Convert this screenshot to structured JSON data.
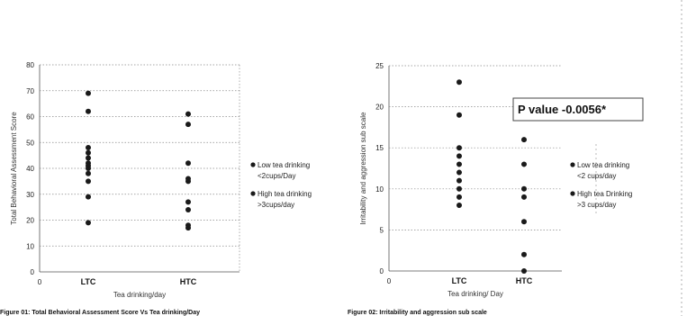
{
  "chart_data": [
    {
      "type": "scatter",
      "categories": [
        "LTC",
        "HTC"
      ],
      "ylabel": "Total Behavioral Assessment Score",
      "xlabel": "Tea drinking/day",
      "ylim": [
        0,
        80
      ],
      "yticks": [
        0,
        10,
        20,
        30,
        40,
        50,
        60,
        70,
        80
      ],
      "xtick_zero": "0",
      "grid": true,
      "legend_position": "right",
      "series": [
        {
          "name": "Low tea drinking <2cups/Day",
          "category": "LTC",
          "values": [
            69,
            62,
            48,
            46,
            44,
            42,
            41,
            40,
            38,
            35,
            29,
            19
          ]
        },
        {
          "name": "High tea drinking >3cups/day",
          "category": "HTC",
          "values": [
            61,
            57,
            42,
            36,
            35,
            27,
            24,
            18,
            17
          ]
        }
      ],
      "caption": "Figure 01: Total Behavioral Assessment Score Vs Tea drinking/Day"
    },
    {
      "type": "scatter",
      "categories": [
        "LTC",
        "HTC"
      ],
      "ylabel": "Irritability and aggression sub scale",
      "xlabel": "Tea drinking/ Day",
      "ylim": [
        0,
        25
      ],
      "yticks": [
        0,
        5,
        10,
        15,
        20,
        25
      ],
      "xtick_zero": "0",
      "grid": true,
      "legend_position": "right",
      "annotation": "P value -0.0056*",
      "series": [
        {
          "name": "Low tea drinking <2 cups/day",
          "category": "LTC",
          "values": [
            23,
            19,
            15,
            14,
            13,
            12,
            11,
            10,
            9,
            8
          ]
        },
        {
          "name": "High tea Drinking >3 cups/day",
          "category": "HTC",
          "values": [
            16,
            13,
            10,
            9,
            6,
            2,
            0
          ]
        }
      ],
      "caption": "Figure 02: Irritability and aggression sub scale"
    }
  ],
  "colors": {
    "marker": "#1a1a1a",
    "grid": "#8a8a8a",
    "axis": "#555555"
  }
}
